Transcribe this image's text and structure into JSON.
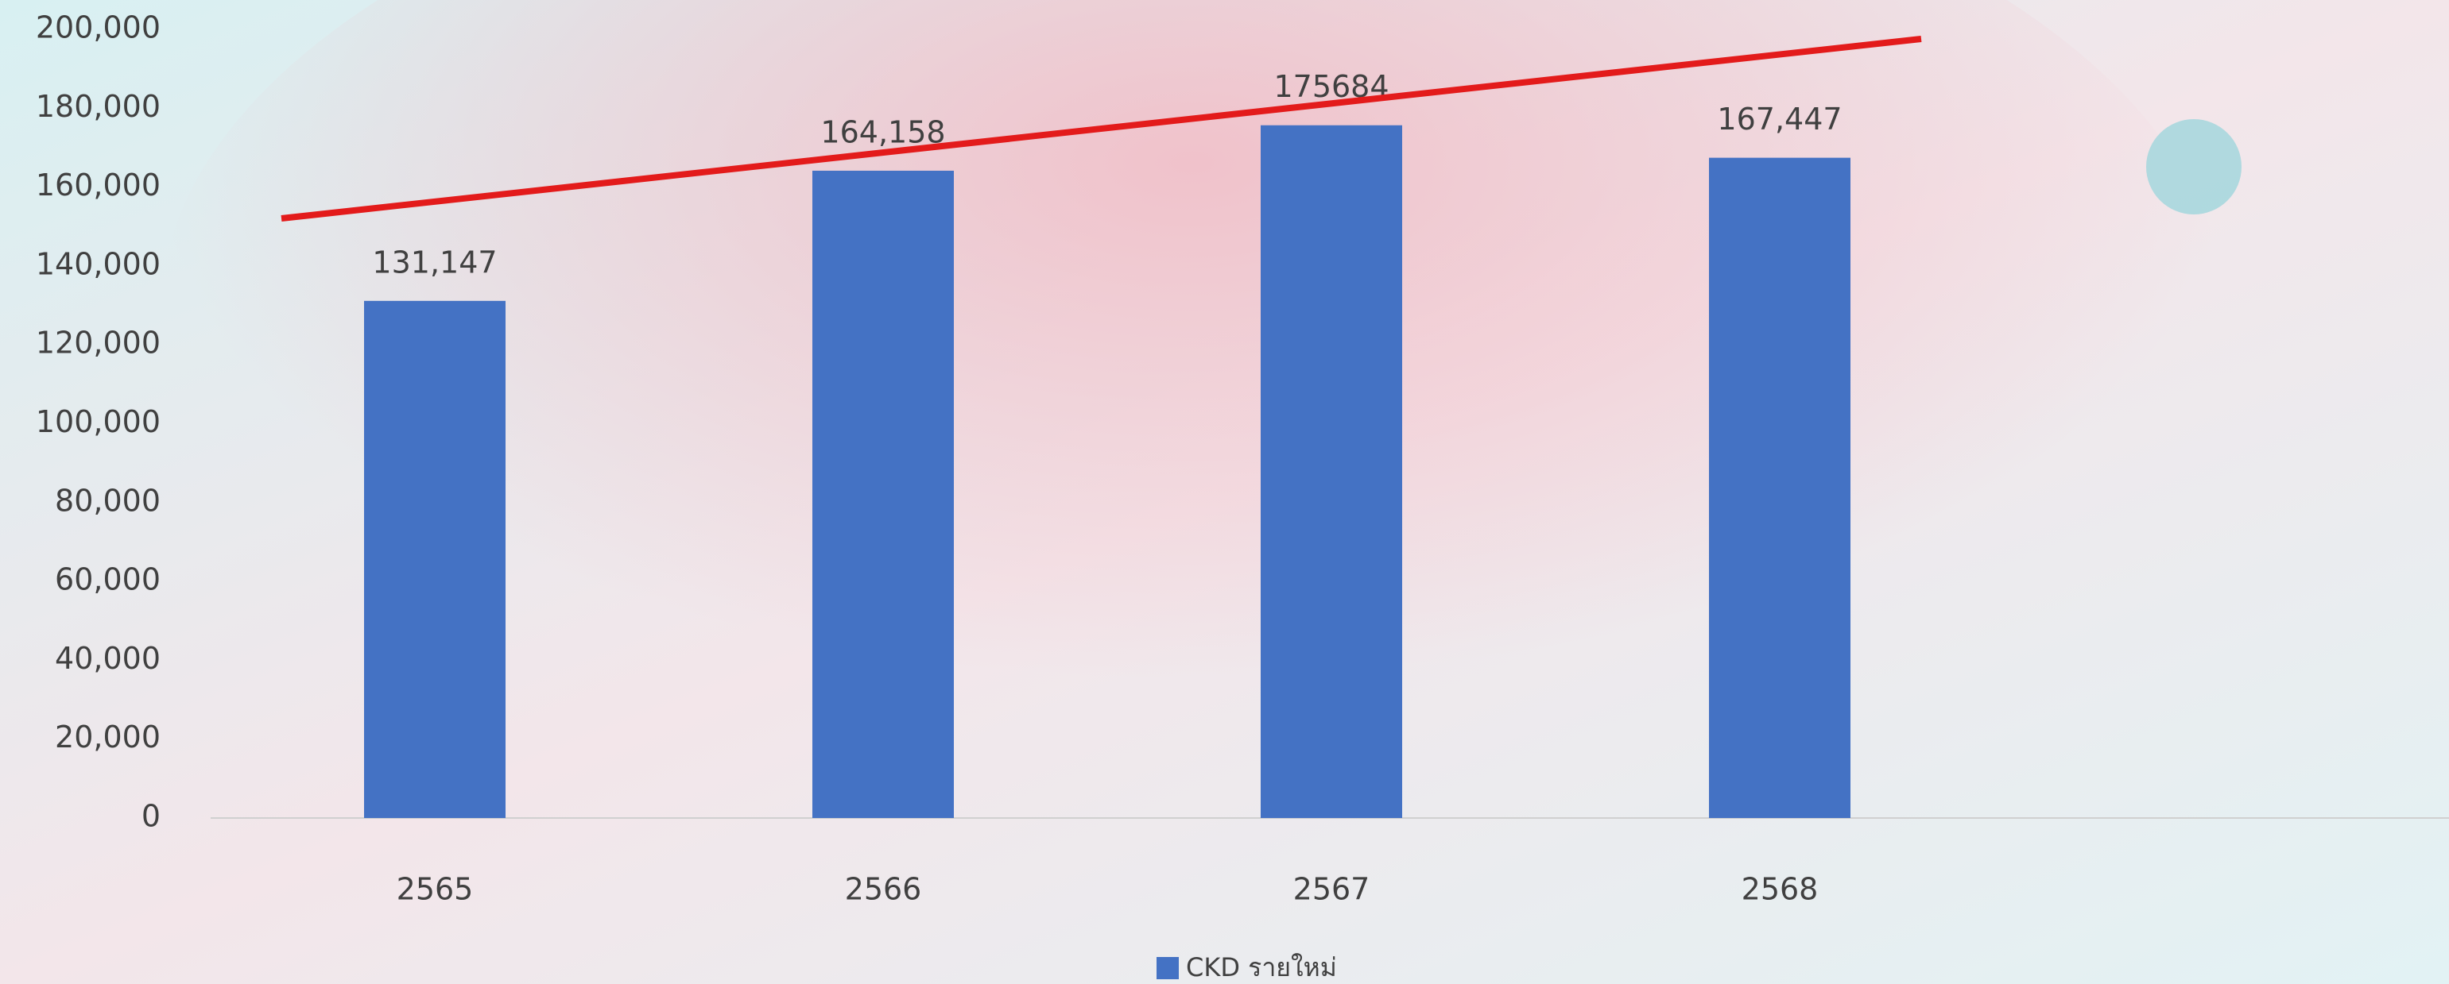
{
  "chart_data": {
    "type": "bar",
    "categories": [
      "2565",
      "2566",
      "2567",
      "2568"
    ],
    "series": [
      {
        "name": "CKD รายใหม่",
        "color": "#4472c4",
        "values": [
          131147,
          164158,
          175684,
          167447
        ],
        "value_labels": [
          "131,147",
          "164,158",
          "175684",
          "167,447"
        ]
      }
    ],
    "ylim": [
      0,
      200000
    ],
    "yticks": [
      0,
      {
        "value": 20000,
        "label": "20,000"
      },
      {
        "value": 40000,
        "label": "40,000"
      },
      {
        "value": 60000,
        "label": "60,000"
      },
      {
        "value": 80000,
        "label": "80,000"
      },
      {
        "value": 100000,
        "label": "100,000"
      },
      {
        "value": 120000,
        "label": "120,000"
      },
      {
        "value": 140000,
        "label": "140,000"
      },
      {
        "value": 160000,
        "label": "160,000"
      },
      {
        "value": 180000,
        "label": "180,000"
      },
      {
        "value": 200000,
        "label": "200,000"
      }
    ],
    "legend": "bottom"
  }
}
